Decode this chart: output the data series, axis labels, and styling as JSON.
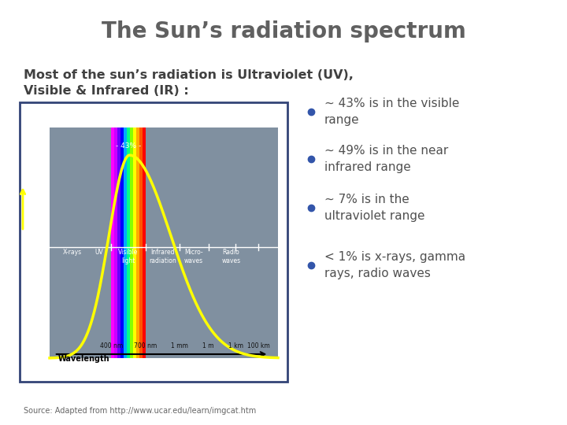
{
  "title": "The Sun’s radiation spectrum",
  "subtitle_line1": "Most of the sun’s radiation is Ultraviolet (UV),",
  "subtitle_line2": "Visible & Infrared (IR) :",
  "bullet_texts": [
    "~ 43% is in the visible\nrange",
    "~ 49% is in the near\ninfrared range",
    "~ 7% is in the\nultraviolet range",
    "< 1% is x-rays, gamma\nrays, radio waves"
  ],
  "source": "Source: Adapted from http://www.ucar.edu/learn/imgcat.htm",
  "bg_color": "#ffffff",
  "title_color": "#606060",
  "subtitle_color": "#404040",
  "bullet_color": "#505050",
  "bullet_dot_color": "#3355aa",
  "chart_bg": "#8090a0",
  "chart_inner_bg": "#7080a0",
  "curve_color": "#ffff00",
  "spectrum_colors": [
    "#ff00ff",
    "#cc00cc",
    "#8800ff",
    "#0000ff",
    "#00aaff",
    "#00ff00",
    "#88ff00",
    "#ffff00",
    "#ffaa00",
    "#ff5500",
    "#ff0000"
  ],
  "region_labels": [
    "X-rays",
    "UV",
    "Visible\nlight",
    "Infrared\nradiation",
    "Micro-\nwaves",
    "Radio\nwaves"
  ],
  "wavelength_labels": [
    "400 nm",
    "700 nm",
    "1 mm",
    "1 m",
    "1 km",
    "100 km"
  ],
  "annotation": "- 43% -"
}
